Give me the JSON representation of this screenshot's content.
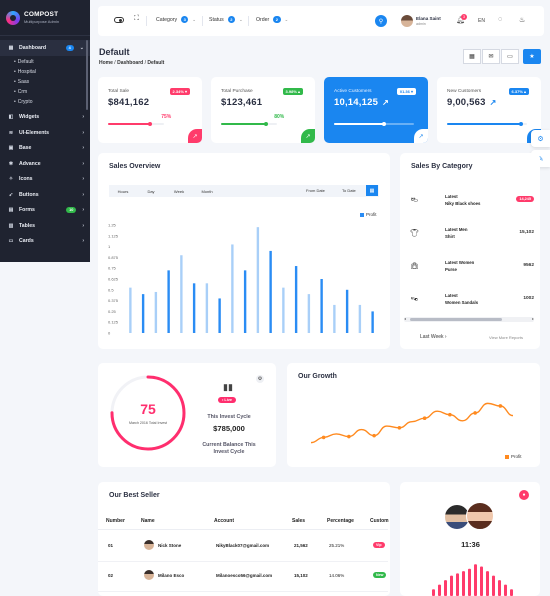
{
  "brand": {
    "name": "COMPOST",
    "subtitle": "Multipurpose Admin"
  },
  "sidebar": {
    "items": [
      {
        "label": "Dashboard",
        "icon": "grid-icon",
        "badge": "4",
        "badge_color": "blue",
        "active": true,
        "children": [
          "Default",
          "Hospital",
          "Saas",
          "Crm",
          "Crypto"
        ]
      },
      {
        "label": "Widgets",
        "icon": "widget-icon"
      },
      {
        "label": "UI-Elements",
        "icon": "layers-icon"
      },
      {
        "label": "Base",
        "icon": "box-icon"
      },
      {
        "label": "Advance",
        "icon": "tool-icon"
      },
      {
        "label": "Icons",
        "icon": "star-icon"
      },
      {
        "label": "Buttons",
        "icon": "cursor-icon"
      },
      {
        "label": "Forms",
        "icon": "form-icon",
        "badge": "10",
        "badge_color": "green"
      },
      {
        "label": "Tables",
        "icon": "table-icon"
      },
      {
        "label": "Cards",
        "icon": "card-icon"
      }
    ]
  },
  "header": {
    "dropdowns": [
      {
        "label": "Category",
        "count": "3"
      },
      {
        "label": "Status",
        "count": "2"
      },
      {
        "label": "Order",
        "count": "2"
      }
    ],
    "user": {
      "name": "Elana Saint",
      "role": "admin"
    },
    "notifications": "3",
    "language": "EN"
  },
  "page": {
    "title": "Default",
    "breadcrumb": [
      "Home",
      "Dashboard",
      "Default"
    ]
  },
  "kpis": [
    {
      "label": "Total Sale",
      "value": "$841,162",
      "change": "2.34% ▾",
      "change_color": "#ff3b6b",
      "percent": "75%",
      "progress": 0.75,
      "bar_color": "#ff3b6b",
      "trend": "↗"
    },
    {
      "label": "Total Purchase",
      "value": "$123,461",
      "change": "3.98% ▴",
      "change_color": "#31b94a",
      "percent": "80%",
      "progress": 0.8,
      "bar_color": "#31b94a",
      "trend": "↗"
    },
    {
      "label": "Active Customers",
      "value": "10,14,125",
      "change": "01.36 ▾",
      "change_color": "#ffffff",
      "percent": "",
      "progress": 0.62,
      "bar_color": "#ffffff",
      "trend": "↗"
    },
    {
      "label": "New Customers",
      "value": "9,00,563",
      "change": "6.37% ▴",
      "change_color": "#1a86f0",
      "percent": "",
      "progress": 0.92,
      "bar_color": "#1a86f0",
      "trend": "↗"
    }
  ],
  "sales_overview": {
    "title": "Sales Overview",
    "tabs": [
      "Hours",
      "Day",
      "Week",
      "Month"
    ],
    "from_date": "From Date",
    "to_date": "To Date",
    "legend": "Profit"
  },
  "chart_data": [
    {
      "type": "bar",
      "title": "Sales Overview",
      "series": [
        {
          "name": "Profit",
          "values": [
            0.525,
            0.45,
            0.475,
            0.725,
            0.9,
            0.575,
            0.575,
            0.4,
            1.025,
            0.725,
            1.225,
            0.95,
            0.525,
            0.775,
            0.45,
            0.625,
            0.325,
            0.5,
            0.325,
            0.25
          ]
        }
      ],
      "ylim": [
        0,
        1.25
      ],
      "yticks": [
        "0",
        "0.125",
        "0.25",
        "0.375",
        "0.5",
        "0.625",
        "0.75",
        "0.875",
        "1",
        "1.125",
        "1.25"
      ],
      "grid": false,
      "legend_position": "top-right"
    },
    {
      "type": "line",
      "title": "Our Growth",
      "series": [
        {
          "name": "Profit",
          "values": [
            10,
            22,
            30,
            24,
            40,
            26,
            48,
            44,
            58,
            66,
            82,
            74,
            60,
            78,
            100,
            94,
            72
          ]
        }
      ],
      "ylim": [
        0,
        110
      ],
      "grid": false,
      "legend_position": "bottom-right"
    },
    {
      "type": "bar",
      "title": "",
      "series": [
        {
          "name": "",
          "values": [
            6,
            10,
            14,
            18,
            20,
            22,
            24,
            28,
            26,
            22,
            18,
            14,
            10,
            6
          ]
        }
      ],
      "ylim": [
        0,
        30
      ],
      "grid": false
    }
  ],
  "sales_by_category": {
    "title": "Sales By Category",
    "rows": [
      {
        "icon": "shoe-icon",
        "label_line1": "Latest",
        "label_line2": "Niky Black shoes",
        "value": "14,245",
        "pill": true
      },
      {
        "icon": "shirt-icon",
        "label_line1": "Latest Men",
        "label_line2": "Shirt",
        "value": "15,102",
        "pill": false
      },
      {
        "icon": "purse-icon",
        "label_line1": "Latest Women",
        "label_line2": "Purse",
        "value": "9562",
        "pill": false
      },
      {
        "icon": "sandal-icon",
        "label_line1": "Latest",
        "label_line2": "Women Sandals",
        "value": "1002",
        "pill": false
      }
    ],
    "period": "Last Week",
    "view_more": "View More Reports"
  },
  "invest": {
    "value": "75",
    "sub": "March 2016 Total Invest",
    "ring_fraction": 0.75,
    "live": "• Live",
    "title": "This Invest Cycle",
    "amount": "$785,000",
    "note_line1": "Current Balance This",
    "note_line2": "Invest Cycle",
    "accent": "#ff2e6e"
  },
  "growth": {
    "title": "Our Growth",
    "legend": "Profit",
    "color": "#ff8a1f"
  },
  "best_seller": {
    "title": "Our Best Seller",
    "columns": [
      "Number",
      "Name",
      "Account",
      "Sales",
      "Percentage",
      "Custom"
    ],
    "rows": [
      {
        "number": "01",
        "name": "Nick Stone",
        "account": "NikyBlack07@gmail.com",
        "sales": "21,562",
        "percentage": "25.21%",
        "status": "Vip",
        "status_color": "#ff3b6b"
      },
      {
        "number": "02",
        "name": "Milano Esco",
        "account": "Milanoesco56@gmail.com",
        "sales": "15,102",
        "percentage": "14.06%",
        "status": "New",
        "status_color": "#31b94a"
      }
    ]
  },
  "call": {
    "time": "11:36",
    "bar_color": "#ff3b6b"
  }
}
